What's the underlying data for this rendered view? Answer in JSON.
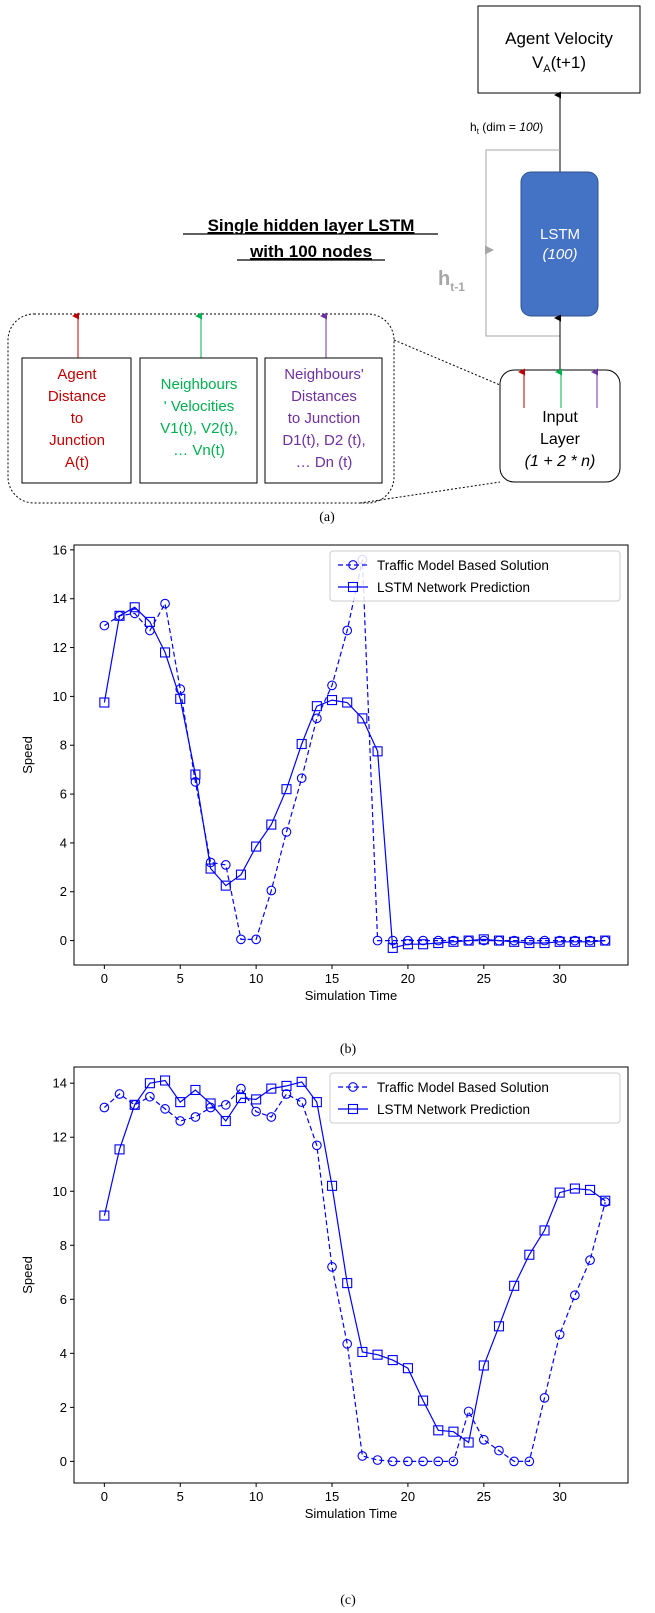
{
  "diagram": {
    "title_line1": "Single hidden layer LSTM",
    "title_line2": "with 100 nodes",
    "output_box": {
      "line1": "Agent Velocity",
      "line2_main": "V",
      "line2_sub": "A",
      "line2_rest": "(t+1)"
    },
    "ht_label": {
      "main": "h",
      "sub": "t",
      "rest": " (dim = ",
      "italic": "100",
      "close": ")"
    },
    "lstm_box": {
      "line1": "LSTM",
      "line2": "(100)"
    },
    "ht1_label": {
      "main": "h",
      "sub": "t-1"
    },
    "input_box": {
      "line1": "Input",
      "line2": "Layer",
      "line3": "(1 + 2 * n)"
    },
    "box_agent": [
      "Agent",
      "Distance",
      "to",
      "Junction",
      "A(t)"
    ],
    "box_neigh_vel": [
      "Neighbours",
      "' Velocities",
      "V1(t), V2(t),",
      "… Vn(t)"
    ],
    "box_neigh_dist": [
      "Neighbours'",
      "Distances",
      "to Junction",
      "D1(t), D2 (t),",
      "… Dn (t)"
    ],
    "caption": "(a)",
    "colors": {
      "red": "#c00000",
      "green": "#00b050",
      "purple": "#7030a0",
      "lstm": "#4472c4",
      "gray": "#a6a6a6"
    }
  },
  "chart_data": [
    {
      "type": "line",
      "caption": "(b)",
      "xlabel": "Simulation Time",
      "ylabel": "Speed",
      "xlim": [
        -2,
        34.5
      ],
      "ylim": [
        -1,
        16.2
      ],
      "xticks": [
        0,
        5,
        10,
        15,
        20,
        25,
        30
      ],
      "yticks": [
        0,
        2,
        4,
        6,
        8,
        10,
        12,
        14,
        16
      ],
      "legend_position": "top-right",
      "series": [
        {
          "name": "Traffic Model Based Solution",
          "style": "dashed",
          "marker": "circle",
          "color": "#0000ff",
          "x": [
            0,
            1,
            2,
            3,
            4,
            5,
            6,
            7,
            8,
            9,
            10,
            11,
            12,
            13,
            14,
            15,
            16,
            17,
            18,
            19,
            20,
            21,
            22,
            23,
            24,
            25,
            26,
            27,
            28,
            29,
            30,
            31,
            32,
            33
          ],
          "y": [
            12.9,
            13.3,
            13.4,
            12.7,
            13.8,
            10.3,
            6.5,
            3.2,
            3.1,
            0.05,
            0.05,
            2.05,
            4.45,
            6.65,
            9.1,
            10.45,
            12.7,
            15.6,
            0.0,
            0.0,
            0.0,
            0.0,
            0.0,
            0.0,
            0.0,
            0.0,
            0.0,
            0.0,
            0.0,
            0.0,
            0.0,
            0.0,
            0.0,
            0.0
          ]
        },
        {
          "name": "LSTM Network Prediction",
          "style": "solid",
          "marker": "square",
          "color": "#0000ff",
          "x": [
            0,
            1,
            2,
            3,
            4,
            5,
            6,
            7,
            8,
            9,
            10,
            11,
            12,
            13,
            14,
            15,
            16,
            17,
            18,
            19,
            20,
            21,
            22,
            23,
            24,
            25,
            26,
            27,
            28,
            29,
            30,
            31,
            32,
            33
          ],
          "y": [
            9.75,
            13.3,
            13.65,
            13.05,
            11.8,
            9.9,
            6.8,
            2.95,
            2.25,
            2.7,
            3.85,
            4.75,
            6.2,
            8.05,
            9.6,
            9.85,
            9.75,
            9.1,
            7.75,
            -0.3,
            -0.15,
            -0.15,
            -0.1,
            -0.05,
            0.0,
            0.05,
            0.0,
            -0.05,
            -0.1,
            -0.1,
            -0.05,
            -0.05,
            -0.05,
            0.0
          ]
        }
      ]
    },
    {
      "type": "line",
      "caption": "(c)",
      "xlabel": "Simulation Time",
      "ylabel": "Speed",
      "xlim": [
        -2,
        34.5
      ],
      "ylim": [
        -0.8,
        14.6
      ],
      "xticks": [
        0,
        5,
        10,
        15,
        20,
        25,
        30
      ],
      "yticks": [
        0,
        2,
        4,
        6,
        8,
        10,
        12,
        14
      ],
      "legend_position": "top-right",
      "series": [
        {
          "name": "Traffic Model Based Solution",
          "style": "dashed",
          "marker": "circle",
          "color": "#0000ff",
          "x": [
            0,
            1,
            2,
            3,
            4,
            5,
            6,
            7,
            8,
            9,
            10,
            11,
            12,
            13,
            14,
            15,
            16,
            17,
            18,
            19,
            20,
            21,
            22,
            23,
            24,
            25,
            26,
            27,
            28,
            29,
            30,
            31,
            32,
            33
          ],
          "y": [
            13.1,
            13.6,
            13.2,
            13.5,
            13.05,
            12.6,
            12.75,
            13.1,
            13.2,
            13.8,
            12.95,
            12.75,
            13.6,
            13.3,
            11.7,
            7.2,
            4.35,
            0.2,
            0.05,
            0.0,
            0.0,
            0.0,
            0.0,
            0.0,
            1.85,
            0.8,
            0.4,
            0.0,
            0.0,
            2.35,
            4.7,
            6.15,
            7.45,
            9.6
          ]
        },
        {
          "name": "LSTM Network Prediction",
          "style": "solid",
          "marker": "square",
          "color": "#0000ff",
          "x": [
            0,
            1,
            2,
            3,
            4,
            5,
            6,
            7,
            8,
            9,
            10,
            11,
            12,
            13,
            14,
            15,
            16,
            17,
            18,
            19,
            20,
            21,
            22,
            23,
            24,
            25,
            26,
            27,
            28,
            29,
            30,
            31,
            32,
            33
          ],
          "y": [
            9.1,
            11.55,
            13.2,
            14.0,
            14.1,
            13.3,
            13.75,
            13.25,
            12.6,
            13.45,
            13.4,
            13.8,
            13.9,
            14.05,
            13.3,
            10.2,
            6.6,
            4.05,
            3.95,
            3.75,
            3.45,
            2.25,
            1.15,
            1.1,
            0.7,
            3.55,
            5.0,
            6.5,
            7.65,
            8.55,
            9.95,
            10.1,
            10.05,
            9.65
          ]
        }
      ]
    }
  ]
}
